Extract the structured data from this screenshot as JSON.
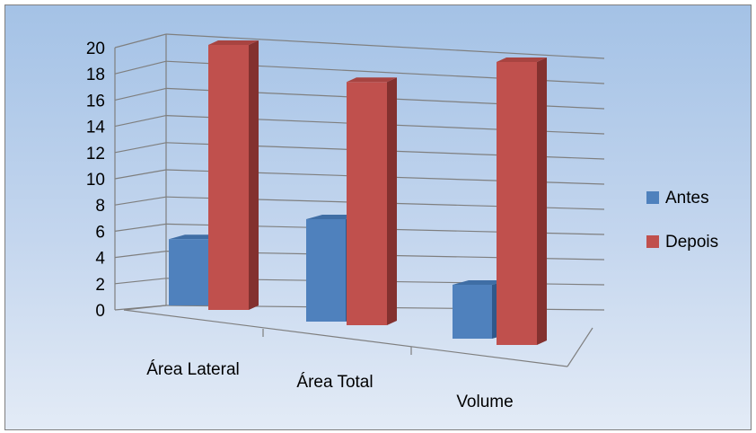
{
  "chart_data": {
    "type": "bar",
    "categories": [
      "Área Lateral",
      "Área Total",
      "Volume"
    ],
    "series": [
      {
        "name": "Antes",
        "values": [
          5,
          8,
          4
        ]
      },
      {
        "name": "Depois",
        "values": [
          20,
          19,
          21
        ]
      }
    ],
    "ylim": [
      0,
      20
    ],
    "yticks": [
      "0",
      "2",
      "4",
      "6",
      "8",
      "10",
      "12",
      "14",
      "16",
      "18",
      "20"
    ],
    "grid": true,
    "legend_position": "right",
    "colors": {
      "Antes": "#4f81bd",
      "Depois": "#c0504d"
    }
  }
}
